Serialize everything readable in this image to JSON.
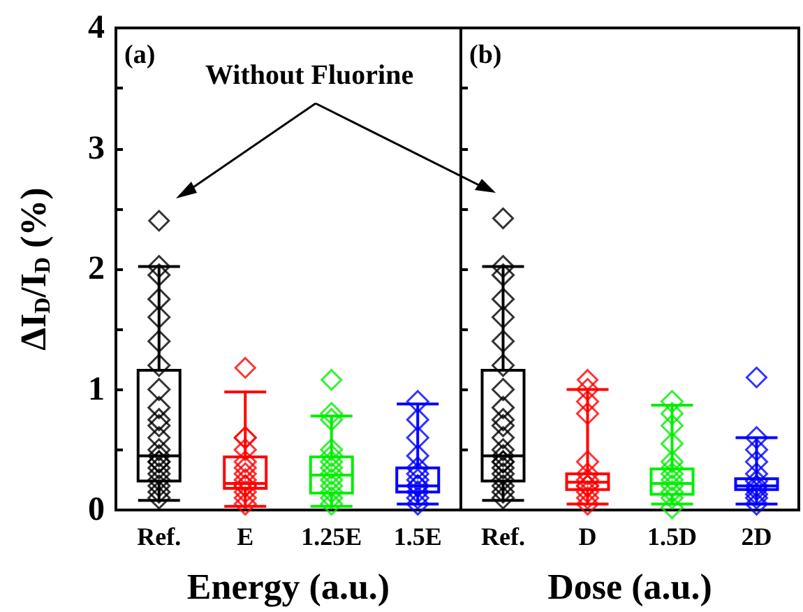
{
  "chart_data": [
    {
      "type": "box",
      "xlabel": "Energy (a.u.)",
      "ylabel": "ΔI$_{D}$/I$_{D}$ (%)",
      "categories": [
        "Ref.",
        "E",
        "1.25E",
        "1.5E"
      ],
      "ylim": [
        0,
        4
      ],
      "yticks": [
        0,
        {
          "value": 0.5,
          "label": null
        },
        1,
        {
          "value": 1.5,
          "label": null
        },
        2,
        {
          "value": 2.5,
          "label": null
        },
        3,
        {
          "value": 3.5,
          "label": null
        },
        4
      ],
      "marker": "diamond",
      "annotations": [
        "(a)",
        "Without Fluorine"
      ],
      "series": [
        {
          "type": "box",
          "colors": [
            "#000000",
            "#ff0000",
            "#00ee00",
            "#0000ff"
          ],
          "boxes": [
            {
              "low": 0.08,
              "q1": 0.24,
              "median": 0.45,
              "q3": 1.16,
              "high": 2.02,
              "outliers": [
                2.4
              ]
            },
            {
              "low": 0.03,
              "q1": 0.18,
              "median": 0.22,
              "q3": 0.44,
              "high": 0.98,
              "outliers": [
                1.18
              ]
            },
            {
              "low": 0.03,
              "q1": 0.14,
              "median": 0.29,
              "q3": 0.44,
              "high": 0.78,
              "outliers": [
                1.08
              ]
            },
            {
              "low": 0.05,
              "q1": 0.15,
              "median": 0.2,
              "q3": 0.35,
              "high": 0.88
            }
          ]
        },
        {
          "type": "scatter",
          "color": "#000000",
          "x": [
            "Ref.",
            "Ref.",
            "Ref.",
            "Ref.",
            "Ref.",
            "Ref.",
            "Ref.",
            "Ref.",
            "Ref.",
            "Ref.",
            "Ref.",
            "Ref.",
            "Ref.",
            "Ref.",
            "Ref.",
            "Ref.",
            "Ref.",
            "Ref.",
            "Ref.",
            "Ref.",
            "Ref."
          ],
          "values": [
            2.02,
            1.95,
            1.75,
            1.6,
            1.4,
            1.2,
            1.0,
            0.85,
            0.75,
            0.7,
            0.6,
            0.5,
            0.45,
            0.4,
            0.4,
            0.35,
            0.3,
            0.25,
            0.2,
            0.15,
            0.1
          ]
        },
        {
          "type": "scatter",
          "color": "#ff0000",
          "x": [
            "E",
            "E",
            "E",
            "E",
            "E",
            "E",
            "E",
            "E",
            "E",
            "E",
            "E",
            "E"
          ],
          "values": [
            0.6,
            0.6,
            0.5,
            0.4,
            0.35,
            0.3,
            0.25,
            0.2,
            0.2,
            0.15,
            0.1,
            0.05
          ]
        },
        {
          "type": "scatter",
          "color": "#00ee00",
          "x": [
            "1.25E",
            "1.25E",
            "1.25E",
            "1.25E",
            "1.25E",
            "1.25E",
            "1.25E",
            "1.25E",
            "1.25E",
            "1.25E",
            "1.25E",
            "1.25E"
          ],
          "values": [
            0.8,
            0.75,
            0.5,
            0.45,
            0.4,
            0.35,
            0.3,
            0.25,
            0.2,
            0.15,
            0.1,
            0.05
          ]
        },
        {
          "type": "scatter",
          "color": "#0000ff",
          "x": [
            "1.5E",
            "1.5E",
            "1.5E",
            "1.5E",
            "1.5E",
            "1.5E",
            "1.5E",
            "1.5E",
            "1.5E",
            "1.5E",
            "1.5E",
            "1.5E"
          ],
          "values": [
            0.9,
            0.75,
            0.6,
            0.45,
            0.35,
            0.3,
            0.25,
            0.2,
            0.2,
            0.15,
            0.1,
            0.05
          ]
        }
      ]
    },
    {
      "type": "box",
      "xlabel": "Dose (a.u.)",
      "categories": [
        "Ref.",
        "D",
        "1.5D",
        "2D"
      ],
      "ylim": [
        0,
        4
      ],
      "yticks": [
        0,
        {
          "value": 0.5,
          "label": null
        },
        1,
        {
          "value": 1.5,
          "label": null
        },
        2,
        {
          "value": 2.5,
          "label": null
        },
        3,
        {
          "value": 3.5,
          "label": null
        },
        4
      ],
      "tick_labels": "x",
      "marker": "diamond",
      "annotations": [
        "(b)"
      ],
      "series": [
        {
          "type": "box",
          "colors": [
            "#000000",
            "#ff0000",
            "#00ee00",
            "#0000ff"
          ],
          "boxes": [
            {
              "low": 0.08,
              "q1": 0.24,
              "median": 0.45,
              "q3": 1.16,
              "high": 2.02,
              "outliers": [
                2.42
              ]
            },
            {
              "low": 0.05,
              "q1": 0.17,
              "median": 0.23,
              "q3": 0.3,
              "high": 1.0,
              "outliers": [
                1.08
              ]
            },
            {
              "low": 0.05,
              "q1": 0.13,
              "median": 0.22,
              "q3": 0.34,
              "high": 0.87
            },
            {
              "low": 0.05,
              "q1": 0.17,
              "median": 0.2,
              "q3": 0.26,
              "high": 0.6,
              "outliers": [
                1.1
              ]
            }
          ]
        },
        {
          "type": "scatter",
          "color": "#000000",
          "x": [
            "Ref.",
            "Ref.",
            "Ref.",
            "Ref.",
            "Ref.",
            "Ref.",
            "Ref.",
            "Ref.",
            "Ref.",
            "Ref.",
            "Ref.",
            "Ref.",
            "Ref.",
            "Ref.",
            "Ref.",
            "Ref.",
            "Ref.",
            "Ref.",
            "Ref.",
            "Ref.",
            "Ref."
          ],
          "values": [
            2.02,
            1.95,
            1.75,
            1.6,
            1.4,
            1.2,
            1.0,
            0.85,
            0.75,
            0.7,
            0.6,
            0.5,
            0.45,
            0.4,
            0.4,
            0.35,
            0.3,
            0.25,
            0.2,
            0.15,
            0.1
          ]
        },
        {
          "type": "scatter",
          "color": "#ff0000",
          "x": [
            "D",
            "D",
            "D",
            "D",
            "D",
            "D",
            "D",
            "D",
            "D",
            "D",
            "D"
          ],
          "values": [
            1.0,
            0.9,
            0.8,
            0.4,
            0.3,
            0.25,
            0.2,
            0.2,
            0.15,
            0.1,
            0.05
          ]
        },
        {
          "type": "scatter",
          "color": "#00ee00",
          "x": [
            "1.5D",
            "1.5D",
            "1.5D",
            "1.5D",
            "1.5D",
            "1.5D",
            "1.5D",
            "1.5D",
            "1.5D",
            "1.5D",
            "1.5D",
            "1.5D"
          ],
          "values": [
            0.9,
            0.8,
            0.7,
            0.55,
            0.4,
            0.35,
            0.3,
            0.25,
            0.2,
            0.15,
            0.1,
            0.02
          ]
        },
        {
          "type": "scatter",
          "color": "#0000ff",
          "x": [
            "2D",
            "2D",
            "2D",
            "2D",
            "2D",
            "2D",
            "2D",
            "2D",
            "2D",
            "2D"
          ],
          "values": [
            0.6,
            0.5,
            0.4,
            0.3,
            0.24,
            0.2,
            0.17,
            0.13,
            0.1,
            0.05
          ]
        }
      ]
    }
  ]
}
